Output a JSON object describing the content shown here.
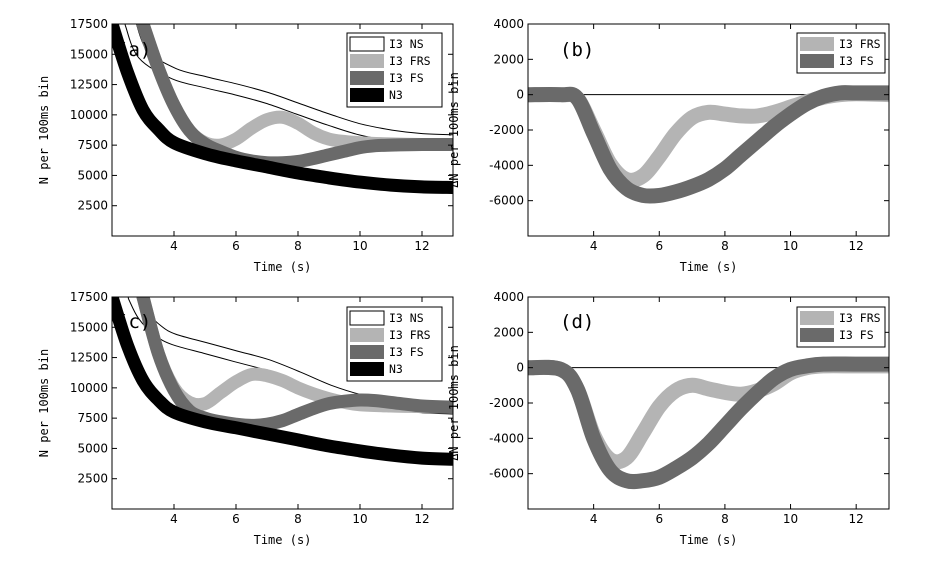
{
  "chart_data": [
    {
      "type": "line",
      "panel_label": "(a)",
      "xlabel": "Time (s)",
      "ylabel": "N per 100ms bin",
      "xlim": [
        2,
        13
      ],
      "ylim": [
        0,
        17500
      ],
      "xticks": [
        "4",
        "6",
        "8",
        "10",
        "12"
      ],
      "yticks": [
        "2500",
        "5000",
        "7500",
        "10000",
        "12500",
        "15000",
        "17500"
      ],
      "legend": [
        "I3 NS",
        "I3 FRS",
        "I3 FS",
        "N3"
      ],
      "series": [
        {
          "name": "I3 NS",
          "style": "outline",
          "color": "#ffffff",
          "x": [
            2.6,
            3.0,
            4.0,
            5.0,
            6.0,
            7.0,
            8.0,
            9.0,
            10.0,
            11.0,
            12.0,
            13.0
          ],
          "y": [
            17500,
            15000,
            13400,
            12700,
            12100,
            11400,
            10500,
            9600,
            8800,
            8300,
            8000,
            7900
          ]
        },
        {
          "name": "I3 FRS",
          "style": "band",
          "color": "#b4b4b4",
          "x": [
            3.0,
            3.5,
            4.0,
            4.5,
            5.0,
            5.5,
            6.0,
            6.5,
            7.0,
            7.5,
            8.0,
            8.5,
            9.0,
            9.5,
            10.0,
            11.0,
            12.0,
            13.0
          ],
          "y": [
            17500,
            13800,
            10800,
            8700,
            7700,
            7500,
            8000,
            8900,
            9600,
            9800,
            9300,
            8500,
            8000,
            7800,
            7700,
            7600,
            7550,
            7550
          ]
        },
        {
          "name": "I3 FS",
          "style": "band",
          "color": "#6a6a6a",
          "x": [
            3.0,
            3.5,
            4.0,
            4.5,
            5.0,
            5.5,
            6.0,
            6.5,
            7.0,
            7.5,
            8.0,
            8.5,
            9.0,
            9.5,
            10.0,
            10.5,
            11.0,
            12.0,
            13.0
          ],
          "y": [
            17500,
            13800,
            10800,
            8700,
            7600,
            7000,
            6500,
            6200,
            6050,
            6050,
            6150,
            6400,
            6700,
            7000,
            7300,
            7450,
            7500,
            7550,
            7550
          ]
        },
        {
          "name": "N3",
          "style": "band",
          "color": "#000000",
          "x": [
            2.0,
            2.5,
            3.0,
            3.5,
            4.0,
            5.0,
            6.0,
            7.0,
            8.0,
            9.0,
            10.0,
            11.0,
            12.0,
            13.0
          ],
          "y": [
            17500,
            13500,
            10400,
            8800,
            7700,
            6800,
            6200,
            5700,
            5200,
            4800,
            4450,
            4200,
            4050,
            4000
          ]
        }
      ]
    },
    {
      "type": "line",
      "panel_label": "(b)",
      "xlabel": "Time (s)",
      "ylabel": "ΔN per 100ms bin",
      "xlim": [
        2,
        13
      ],
      "ylim": [
        -8000,
        4000
      ],
      "xticks": [
        "4",
        "6",
        "8",
        "10",
        "12"
      ],
      "yticks": [
        "4000",
        "2000",
        "0",
        "-2000",
        "-4000",
        "-6000"
      ],
      "legend": [
        "I3 FRS",
        "I3 FS"
      ],
      "series": [
        {
          "name": "I3 FRS",
          "style": "band",
          "color": "#b4b4b4",
          "x": [
            2.0,
            3.0,
            3.5,
            4.0,
            4.5,
            5.0,
            5.5,
            6.0,
            6.5,
            7.0,
            7.5,
            8.0,
            8.5,
            9.0,
            9.5,
            10.0,
            10.5,
            11.0,
            11.5,
            12.0,
            13.0
          ],
          "y": [
            0,
            0,
            -200,
            -2000,
            -3900,
            -4800,
            -4600,
            -3500,
            -2200,
            -1300,
            -1000,
            -1100,
            -1200,
            -1200,
            -1000,
            -700,
            -400,
            -150,
            0,
            50,
            0
          ]
        },
        {
          "name": "I3 FS",
          "style": "band",
          "color": "#6a6a6a",
          "x": [
            2.0,
            3.0,
            3.5,
            4.0,
            4.5,
            5.0,
            5.5,
            6.0,
            6.5,
            7.0,
            7.5,
            8.0,
            8.5,
            9.0,
            9.5,
            10.0,
            10.5,
            11.0,
            11.5,
            12.0,
            13.0
          ],
          "y": [
            0,
            0,
            -200,
            -2200,
            -4200,
            -5300,
            -5700,
            -5700,
            -5500,
            -5200,
            -4800,
            -4200,
            -3400,
            -2600,
            -1800,
            -1100,
            -500,
            -100,
            100,
            100,
            100
          ]
        }
      ]
    },
    {
      "type": "line",
      "panel_label": "(c)",
      "xlabel": "Time (s)",
      "ylabel": "N per 100ms bin",
      "xlim": [
        2,
        13
      ],
      "ylim": [
        0,
        17500
      ],
      "xticks": [
        "4",
        "6",
        "8",
        "10",
        "12"
      ],
      "yticks": [
        "2500",
        "5000",
        "7500",
        "10000",
        "12500",
        "15000",
        "17500"
      ],
      "legend": [
        "I3 NS",
        "I3 FRS",
        "I3 FS",
        "N3"
      ],
      "series": [
        {
          "name": "I3 NS",
          "style": "outline",
          "color": "#ffffff",
          "x": [
            2.7,
            3.0,
            3.5,
            4.0,
            5.0,
            6.0,
            7.0,
            8.0,
            9.0,
            10.0,
            11.0,
            12.0,
            13.0
          ],
          "y": [
            17500,
            16000,
            14700,
            14000,
            13300,
            12600,
            11900,
            10900,
            9800,
            9000,
            8600,
            8400,
            8300
          ]
        },
        {
          "name": "I3 FRS",
          "style": "band",
          "color": "#b4b4b4",
          "x": [
            3.0,
            3.5,
            4.0,
            4.5,
            5.0,
            5.5,
            6.0,
            6.5,
            7.0,
            7.5,
            8.0,
            8.5,
            9.0,
            9.5,
            10.0,
            11.0,
            12.0,
            13.0
          ],
          "y": [
            17500,
            12800,
            10000,
            8800,
            8700,
            9600,
            10500,
            11100,
            11000,
            10600,
            10000,
            9500,
            9100,
            8800,
            8600,
            8500,
            8450,
            8400
          ]
        },
        {
          "name": "I3 FS",
          "style": "band",
          "color": "#6a6a6a",
          "x": [
            3.0,
            3.5,
            4.0,
            4.5,
            5.0,
            5.5,
            6.0,
            6.5,
            7.0,
            7.5,
            8.0,
            8.5,
            9.0,
            9.5,
            10.0,
            10.5,
            11.0,
            12.0,
            13.0
          ],
          "y": [
            17500,
            12800,
            9800,
            8100,
            7500,
            7200,
            7000,
            6900,
            7000,
            7300,
            7800,
            8300,
            8700,
            8900,
            9000,
            8950,
            8800,
            8500,
            8400
          ]
        },
        {
          "name": "N3",
          "style": "band",
          "color": "#000000",
          "x": [
            2.0,
            2.5,
            3.0,
            3.5,
            4.0,
            5.0,
            6.0,
            7.0,
            8.0,
            9.0,
            10.0,
            11.0,
            12.0,
            13.0
          ],
          "y": [
            17500,
            13500,
            10600,
            9000,
            8000,
            7200,
            6700,
            6200,
            5700,
            5200,
            4800,
            4450,
            4200,
            4100
          ]
        }
      ]
    },
    {
      "type": "line",
      "panel_label": "(d)",
      "xlabel": "Time (s)",
      "ylabel": "ΔN per 100ms bin",
      "xlim": [
        2,
        13
      ],
      "ylim": [
        -8000,
        4000
      ],
      "xticks": [
        "4",
        "6",
        "8",
        "10",
        "12"
      ],
      "yticks": [
        "4000",
        "2000",
        "0",
        "-2000",
        "-4000",
        "-6000"
      ],
      "legend": [
        "I3 FRS",
        "I3 FS"
      ],
      "series": [
        {
          "name": "I3 FRS",
          "style": "band",
          "color": "#b4b4b4",
          "x": [
            2.0,
            3.0,
            3.5,
            4.0,
            4.5,
            5.0,
            5.5,
            6.0,
            6.5,
            7.0,
            7.5,
            8.0,
            8.5,
            9.0,
            9.5,
            10.0,
            10.5,
            11.0,
            12.0,
            13.0
          ],
          "y": [
            0,
            -100,
            -1200,
            -3800,
            -5200,
            -5100,
            -3700,
            -2200,
            -1300,
            -1000,
            -1200,
            -1400,
            -1500,
            -1300,
            -900,
            -300,
            0,
            100,
            100,
            100
          ]
        },
        {
          "name": "I3 FS",
          "style": "band",
          "color": "#6a6a6a",
          "x": [
            2.0,
            3.0,
            3.5,
            4.0,
            4.5,
            5.0,
            5.5,
            6.0,
            6.5,
            7.0,
            7.5,
            8.0,
            8.5,
            9.0,
            9.5,
            10.0,
            10.5,
            11.0,
            12.0,
            13.0
          ],
          "y": [
            0,
            -100,
            -1200,
            -4000,
            -5800,
            -6400,
            -6400,
            -6200,
            -5700,
            -5100,
            -4300,
            -3300,
            -2300,
            -1400,
            -600,
            -100,
            100,
            200,
            200,
            200
          ]
        }
      ]
    }
  ]
}
